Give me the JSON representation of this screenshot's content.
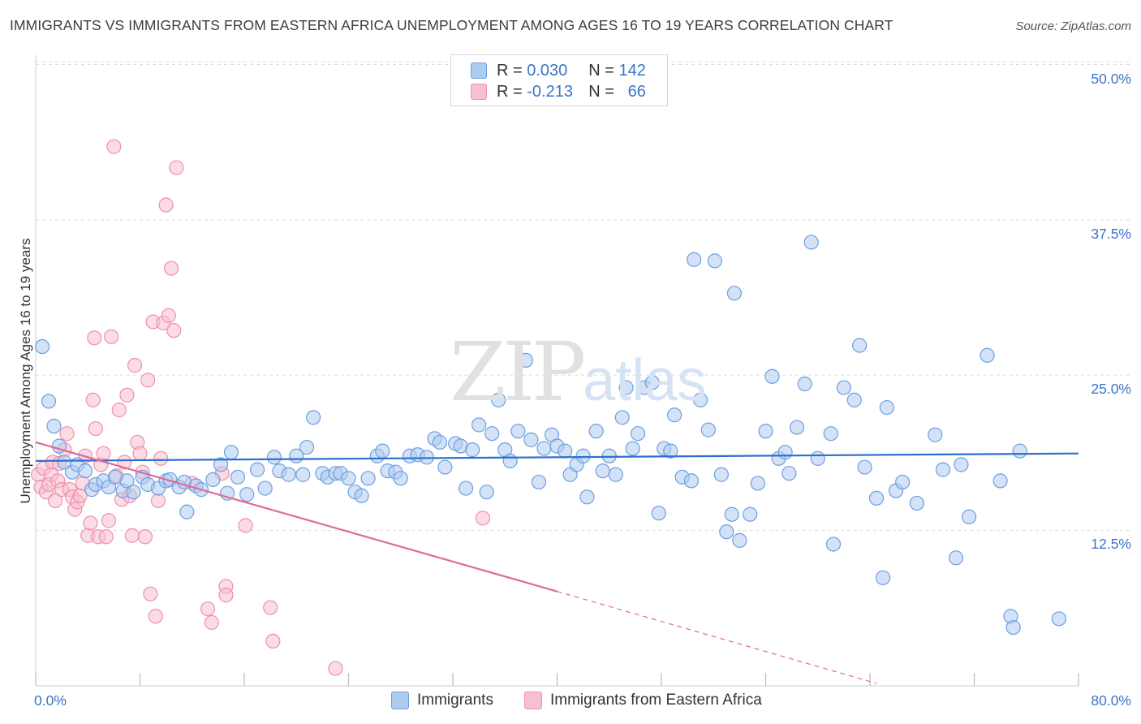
{
  "title": "IMMIGRANTS VS IMMIGRANTS FROM EASTERN AFRICA UNEMPLOYMENT AMONG AGES 16 TO 19 YEARS CORRELATION CHART",
  "source": "Source: ZipAtlas.com",
  "watermark": {
    "zip": "ZIP",
    "atlas": "atlas"
  },
  "legend": {
    "r_label": "R =",
    "n_label": "N =",
    "rows": [
      {
        "r": "0.030",
        "n": "142"
      },
      {
        "r": "-0.213",
        "n": "66"
      }
    ]
  },
  "colors": {
    "blue_fill": "#aecbf0",
    "blue_stroke": "#6d9fe0",
    "blue_line": "#2b6fd0",
    "pink_fill": "#f7c0d0",
    "pink_stroke": "#ef8fab",
    "pink_line": "#e06a96",
    "tick_text": "#3b74c9",
    "grid": "#dddddd"
  },
  "chart_data": {
    "type": "scatter",
    "xlabel": "",
    "ylabel": "Unemployment Among Ages 16 to 19 years",
    "xlim": [
      0,
      80
    ],
    "ylim": [
      0,
      52
    ],
    "x_ticks": [
      0,
      80
    ],
    "x_tick_labels": [
      "0.0%",
      "80.0%"
    ],
    "y_ticks": [
      12.5,
      25,
      37.5,
      50
    ],
    "y_tick_labels": [
      "12.5%",
      "25.0%",
      "37.5%",
      "50.0%"
    ],
    "grid": true,
    "legend_position": "top-center",
    "series": [
      {
        "name": "Immigrants",
        "color": "#aecbf0",
        "trend": {
          "x": [
            0,
            80
          ],
          "y": [
            18.1,
            18.7
          ]
        },
        "points": [
          [
            0.5,
            27.3
          ],
          [
            1.0,
            22.9
          ],
          [
            1.4,
            20.9
          ],
          [
            1.8,
            19.3
          ],
          [
            2.2,
            18.0
          ],
          [
            2.8,
            17.2
          ],
          [
            3.2,
            17.8
          ],
          [
            3.8,
            17.3
          ],
          [
            4.3,
            15.8
          ],
          [
            4.6,
            16.2
          ],
          [
            5.2,
            16.5
          ],
          [
            5.6,
            16.0
          ],
          [
            6.1,
            16.8
          ],
          [
            6.7,
            15.7
          ],
          [
            7.0,
            16.5
          ],
          [
            7.5,
            15.6
          ],
          [
            8.2,
            16.8
          ],
          [
            8.6,
            16.2
          ],
          [
            9.4,
            15.9
          ],
          [
            10.0,
            16.5
          ],
          [
            10.3,
            16.6
          ],
          [
            11.0,
            16.0
          ],
          [
            11.4,
            16.4
          ],
          [
            11.6,
            14.0
          ],
          [
            12.3,
            16.1
          ],
          [
            12.7,
            15.8
          ],
          [
            13.6,
            16.6
          ],
          [
            14.2,
            17.8
          ],
          [
            14.7,
            15.5
          ],
          [
            15.0,
            18.8
          ],
          [
            15.5,
            16.8
          ],
          [
            16.2,
            15.4
          ],
          [
            17.0,
            17.4
          ],
          [
            17.6,
            15.9
          ],
          [
            18.3,
            18.4
          ],
          [
            18.7,
            17.3
          ],
          [
            19.4,
            17.0
          ],
          [
            20.0,
            18.5
          ],
          [
            20.5,
            17.0
          ],
          [
            20.8,
            19.2
          ],
          [
            21.3,
            21.6
          ],
          [
            22.0,
            17.1
          ],
          [
            22.4,
            16.8
          ],
          [
            23.0,
            17.1
          ],
          [
            23.4,
            17.1
          ],
          [
            24.0,
            16.7
          ],
          [
            24.5,
            15.6
          ],
          [
            25.0,
            15.3
          ],
          [
            25.5,
            16.7
          ],
          [
            26.2,
            18.5
          ],
          [
            26.6,
            18.9
          ],
          [
            27.0,
            17.3
          ],
          [
            27.6,
            17.2
          ],
          [
            28.0,
            16.7
          ],
          [
            28.7,
            18.5
          ],
          [
            29.3,
            18.6
          ],
          [
            30.0,
            18.4
          ],
          [
            30.6,
            19.9
          ],
          [
            31.0,
            19.6
          ],
          [
            31.4,
            17.6
          ],
          [
            32.2,
            19.5
          ],
          [
            32.6,
            19.3
          ],
          [
            33.0,
            15.9
          ],
          [
            33.5,
            19.0
          ],
          [
            34.0,
            21.0
          ],
          [
            34.6,
            15.6
          ],
          [
            35.0,
            20.3
          ],
          [
            35.5,
            23.0
          ],
          [
            36.0,
            19.0
          ],
          [
            36.4,
            18.1
          ],
          [
            37.0,
            20.5
          ],
          [
            37.6,
            26.2
          ],
          [
            38.0,
            19.8
          ],
          [
            38.6,
            16.4
          ],
          [
            39.0,
            19.1
          ],
          [
            39.6,
            20.2
          ],
          [
            40.0,
            19.3
          ],
          [
            40.6,
            18.9
          ],
          [
            41.0,
            17.0
          ],
          [
            41.5,
            17.8
          ],
          [
            42.0,
            18.5
          ],
          [
            42.3,
            15.2
          ],
          [
            43.0,
            20.5
          ],
          [
            43.5,
            17.3
          ],
          [
            44.0,
            18.5
          ],
          [
            44.5,
            17.0
          ],
          [
            45.0,
            21.6
          ],
          [
            45.3,
            24.0
          ],
          [
            45.8,
            19.1
          ],
          [
            46.2,
            20.3
          ],
          [
            46.7,
            24.0
          ],
          [
            47.3,
            24.4
          ],
          [
            47.8,
            13.9
          ],
          [
            48.2,
            19.1
          ],
          [
            48.7,
            18.9
          ],
          [
            49.0,
            21.8
          ],
          [
            49.6,
            16.8
          ],
          [
            50.3,
            16.5
          ],
          [
            50.5,
            34.3
          ],
          [
            51.0,
            23.0
          ],
          [
            51.6,
            20.6
          ],
          [
            52.1,
            34.2
          ],
          [
            52.6,
            17.0
          ],
          [
            53.4,
            13.8
          ],
          [
            53.6,
            31.6
          ],
          [
            53.0,
            12.4
          ],
          [
            54.0,
            11.7
          ],
          [
            54.8,
            13.8
          ],
          [
            55.4,
            16.3
          ],
          [
            56.0,
            20.5
          ],
          [
            56.5,
            24.9
          ],
          [
            57.0,
            18.3
          ],
          [
            57.5,
            18.8
          ],
          [
            57.8,
            17.1
          ],
          [
            58.4,
            20.8
          ],
          [
            59.0,
            24.3
          ],
          [
            59.5,
            35.7
          ],
          [
            60.0,
            18.3
          ],
          [
            61.0,
            20.3
          ],
          [
            61.2,
            11.4
          ],
          [
            62.0,
            24.0
          ],
          [
            62.8,
            23.0
          ],
          [
            63.2,
            27.4
          ],
          [
            63.6,
            17.6
          ],
          [
            64.5,
            15.1
          ],
          [
            65.0,
            8.7
          ],
          [
            65.3,
            22.4
          ],
          [
            66.0,
            15.7
          ],
          [
            66.5,
            16.4
          ],
          [
            67.6,
            14.7
          ],
          [
            69.0,
            20.2
          ],
          [
            69.6,
            17.4
          ],
          [
            70.6,
            10.3
          ],
          [
            71.0,
            17.8
          ],
          [
            71.6,
            13.6
          ],
          [
            73.0,
            26.6
          ],
          [
            74.0,
            16.5
          ],
          [
            74.8,
            5.6
          ],
          [
            75.0,
            4.7
          ],
          [
            75.5,
            18.9
          ],
          [
            78.5,
            5.4
          ]
        ]
      },
      {
        "name": "Immigrants from Eastern Africa",
        "color": "#f7c0d0",
        "trend": {
          "x": [
            0,
            40
          ],
          "y": [
            19.6,
            7.6
          ]
        },
        "trend_dashed": {
          "x": [
            40,
            64.5
          ],
          "y": [
            7.6,
            0.2
          ]
        },
        "points": [
          [
            0.2,
            17.0
          ],
          [
            0.4,
            16.0
          ],
          [
            0.6,
            17.5
          ],
          [
            0.8,
            15.6
          ],
          [
            1.0,
            16.2
          ],
          [
            1.2,
            17.0
          ],
          [
            1.3,
            18.0
          ],
          [
            1.5,
            14.9
          ],
          [
            1.7,
            16.5
          ],
          [
            1.8,
            17.9
          ],
          [
            2.0,
            15.8
          ],
          [
            2.2,
            19.0
          ],
          [
            2.4,
            20.3
          ],
          [
            2.6,
            15.8
          ],
          [
            2.8,
            15.2
          ],
          [
            3.0,
            14.2
          ],
          [
            3.2,
            14.8
          ],
          [
            3.4,
            15.3
          ],
          [
            3.6,
            16.3
          ],
          [
            3.8,
            18.5
          ],
          [
            4.0,
            12.1
          ],
          [
            4.2,
            13.1
          ],
          [
            4.4,
            23.0
          ],
          [
            4.5,
            28.0
          ],
          [
            4.6,
            20.7
          ],
          [
            4.8,
            12.0
          ],
          [
            5.0,
            17.8
          ],
          [
            5.2,
            18.7
          ],
          [
            5.4,
            12.0
          ],
          [
            5.6,
            13.3
          ],
          [
            5.8,
            28.1
          ],
          [
            6.0,
            43.4
          ],
          [
            6.2,
            16.9
          ],
          [
            6.4,
            22.2
          ],
          [
            6.6,
            15.0
          ],
          [
            6.8,
            18.0
          ],
          [
            7.0,
            23.4
          ],
          [
            7.2,
            15.3
          ],
          [
            7.4,
            12.1
          ],
          [
            7.6,
            25.8
          ],
          [
            7.8,
            19.6
          ],
          [
            8.0,
            18.7
          ],
          [
            8.2,
            17.2
          ],
          [
            8.4,
            12.0
          ],
          [
            8.6,
            24.6
          ],
          [
            8.8,
            7.4
          ],
          [
            9.0,
            29.3
          ],
          [
            9.2,
            5.6
          ],
          [
            9.4,
            14.9
          ],
          [
            9.6,
            18.3
          ],
          [
            9.8,
            29.2
          ],
          [
            10.0,
            38.7
          ],
          [
            10.2,
            29.8
          ],
          [
            10.4,
            33.6
          ],
          [
            10.6,
            28.6
          ],
          [
            10.8,
            41.7
          ],
          [
            12.0,
            16.3
          ],
          [
            13.2,
            6.2
          ],
          [
            13.5,
            5.1
          ],
          [
            14.3,
            17.1
          ],
          [
            14.6,
            8.0
          ],
          [
            14.6,
            7.3
          ],
          [
            16.1,
            12.9
          ],
          [
            18.0,
            6.3
          ],
          [
            18.2,
            3.6
          ],
          [
            23.0,
            1.4
          ],
          [
            34.3,
            13.5
          ]
        ]
      }
    ]
  },
  "bottom_legend": [
    {
      "label": "Immigrants"
    },
    {
      "label": "Immigrants from Eastern Africa"
    }
  ]
}
